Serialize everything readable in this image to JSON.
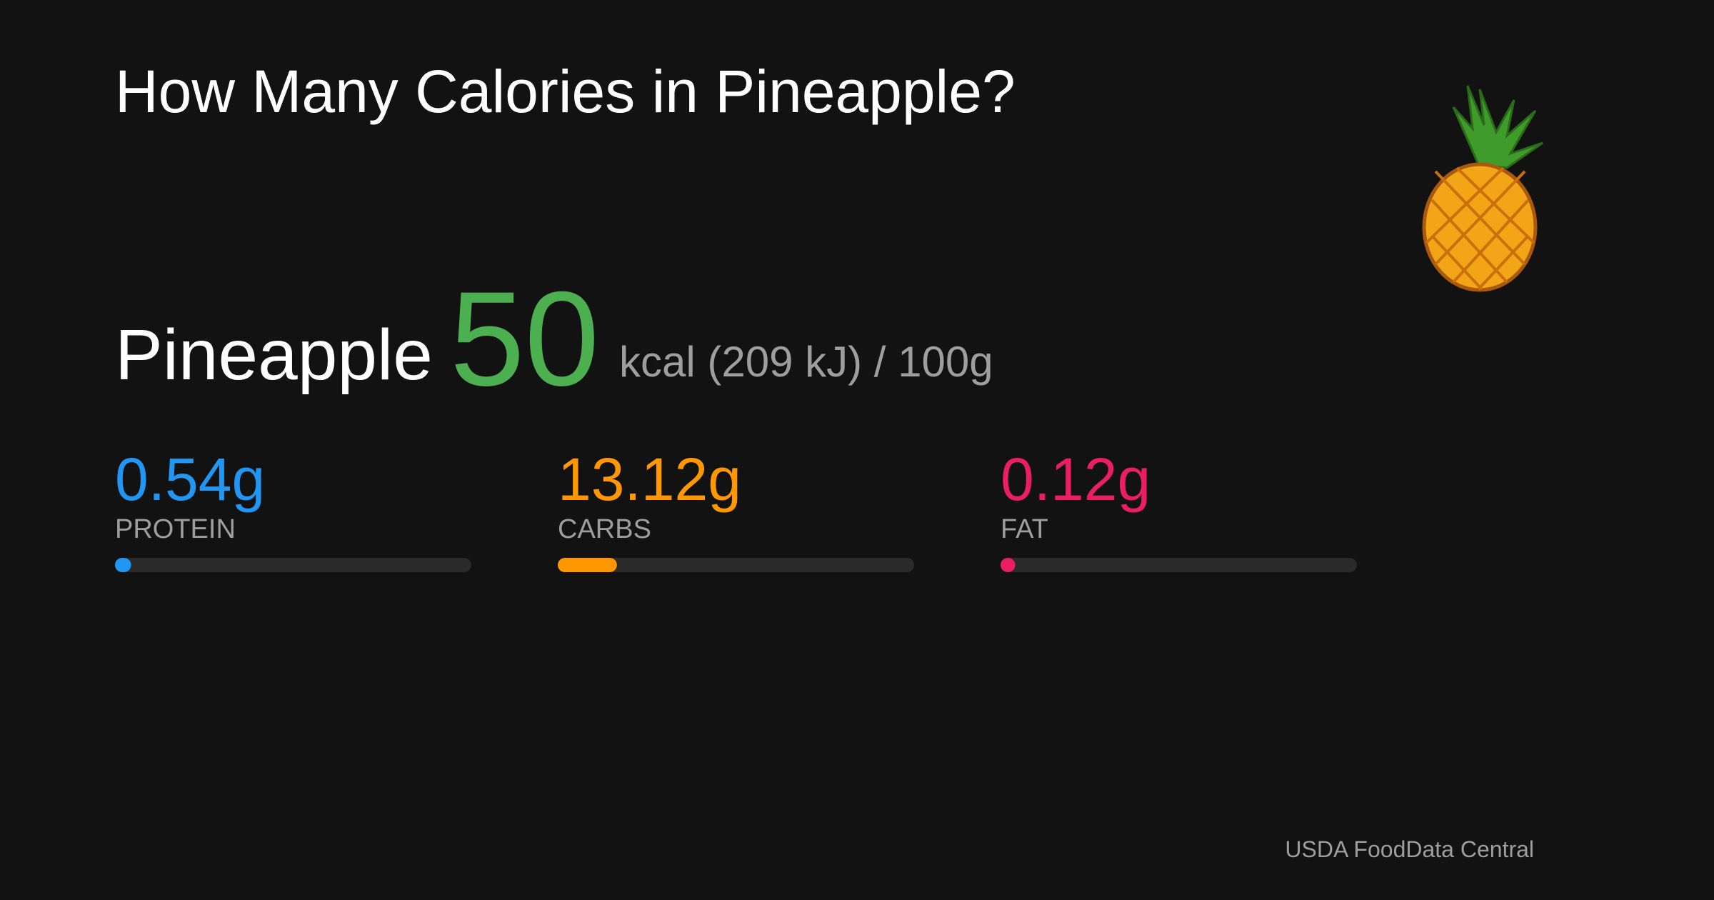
{
  "header": {
    "title": "How Many Calories in Pineapple?"
  },
  "food": {
    "name": "Pineapple",
    "calories": 50,
    "color": "#4caf50",
    "unit_text": "kcal (209 kJ) / 100g"
  },
  "macros": [
    {
      "value": 0.54,
      "value_label": "0.54g",
      "label": "PROTEIN",
      "color": "#2196f3"
    },
    {
      "value": 13.12,
      "value_label": "13.12g",
      "label": "CARBS",
      "color": "#ff9800"
    },
    {
      "value": 0.12,
      "value_label": "0.12g",
      "label": "FAT",
      "color": "#e91e63"
    }
  ],
  "footer": {
    "source": "USDA FoodData Central"
  }
}
